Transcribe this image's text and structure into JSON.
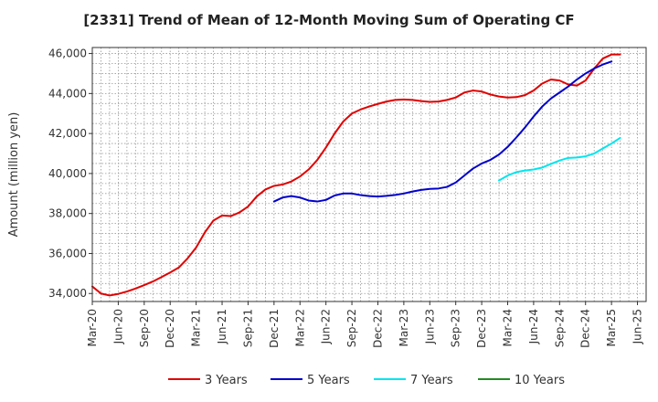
{
  "chart_data": {
    "type": "line",
    "title": "[2331]  Trend of Mean of 12-Month Moving Sum of Operating CF",
    "xlabel": "",
    "ylabel": "Amount (million yen)",
    "ylim": [
      33600,
      46300
    ],
    "yticks": [
      34000,
      36000,
      38000,
      40000,
      42000,
      44000,
      46000
    ],
    "ytick_labels": [
      "34,000",
      "36,000",
      "38,000",
      "40,000",
      "42,000",
      "44,000",
      "46,000"
    ],
    "x_start": {
      "year": 2020,
      "month": 3
    },
    "n_months": 64,
    "xtick_labels": [
      "Mar-20",
      "Jun-20",
      "Sep-20",
      "Dec-20",
      "Mar-21",
      "Jun-21",
      "Sep-21",
      "Dec-21",
      "Mar-22",
      "Jun-22",
      "Sep-22",
      "Dec-22",
      "Mar-23",
      "Jun-23",
      "Sep-23",
      "Dec-23",
      "Mar-24",
      "Jun-24",
      "Sep-24",
      "Dec-24",
      "Mar-25",
      "Jun-25"
    ],
    "grid": true,
    "legend_position": "bottom",
    "series": [
      {
        "name": "3 Years",
        "color": "#e00000",
        "start_index": 0,
        "values": [
          34350,
          34000,
          33900,
          33980,
          34100,
          34250,
          34420,
          34600,
          34820,
          35050,
          35300,
          35750,
          36300,
          37050,
          37650,
          37900,
          37870,
          38050,
          38350,
          38850,
          39200,
          39380,
          39450,
          39600,
          39850,
          40200,
          40680,
          41300,
          42000,
          42600,
          43000,
          43200,
          43350,
          43480,
          43600,
          43680,
          43700,
          43680,
          43620,
          43580,
          43600,
          43680,
          43800,
          44050,
          44150,
          44100,
          43950,
          43850,
          43800,
          43820,
          43920,
          44150,
          44500,
          44700,
          44650,
          44450,
          44400,
          44650,
          45250,
          45750,
          45950,
          45950
        ]
      },
      {
        "name": "5 Years",
        "color": "#0000cc",
        "start_index": 21,
        "values": [
          38600,
          38800,
          38870,
          38800,
          38650,
          38600,
          38680,
          38900,
          39000,
          39000,
          38920,
          38870,
          38850,
          38880,
          38930,
          39000,
          39100,
          39180,
          39230,
          39250,
          39330,
          39550,
          39900,
          40250,
          40500,
          40680,
          40950,
          41330,
          41800,
          42300,
          42850,
          43350,
          43750,
          44050,
          44350,
          44700,
          45000,
          45250,
          45450,
          45600
        ]
      },
      {
        "name": "7 Years",
        "color": "#00e5ee",
        "start_index": 47,
        "values": [
          39650,
          39900,
          40070,
          40150,
          40200,
          40300,
          40480,
          40650,
          40780,
          40800,
          40860,
          41000,
          41250,
          41500,
          41780
        ]
      },
      {
        "name": "10 Years",
        "color": "#228b22",
        "start_index": 0,
        "values": []
      }
    ]
  }
}
